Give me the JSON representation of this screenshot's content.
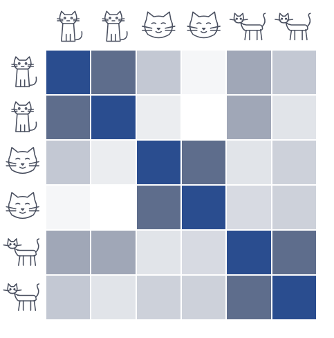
{
  "chart_data": {
    "type": "heatmap",
    "tick_labels": false,
    "cells": [
      [
        1.0,
        0.65,
        0.3,
        0.05,
        0.45,
        0.3
      ],
      [
        0.65,
        1.0,
        0.1,
        0.0,
        0.45,
        0.15
      ],
      [
        0.3,
        0.1,
        1.0,
        0.65,
        0.15,
        0.25
      ],
      [
        0.05,
        0.0,
        0.65,
        1.0,
        0.2,
        0.25
      ],
      [
        0.45,
        0.45,
        0.15,
        0.2,
        1.0,
        0.65
      ],
      [
        0.3,
        0.15,
        0.25,
        0.25,
        0.65,
        1.0
      ]
    ]
  }
}
